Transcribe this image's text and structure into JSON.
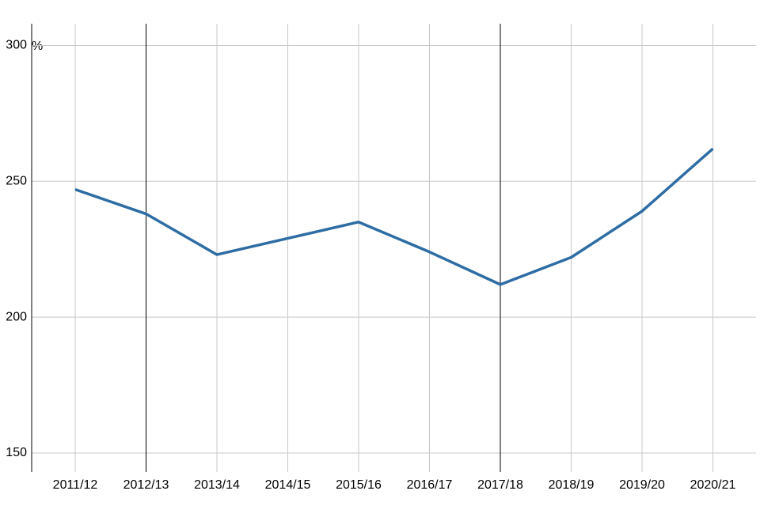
{
  "chart_data": {
    "type": "line",
    "y_label": "%",
    "categories": [
      "2011/12",
      "2012/13",
      "2013/14",
      "2014/15",
      "2015/16",
      "2016/17",
      "2017/18",
      "2018/19",
      "2019/20",
      "2020/21"
    ],
    "series": [
      {
        "color": "#2e6da4",
        "values": [
          247,
          238,
          223,
          229,
          235,
          224,
          212,
          222,
          239,
          262
        ]
      }
    ],
    "highlighted": [
      "2012/13",
      "2017/18"
    ],
    "ylim": [
      143,
      308
    ],
    "yticks": [
      150,
      200,
      250,
      300
    ],
    "grid": true
  }
}
